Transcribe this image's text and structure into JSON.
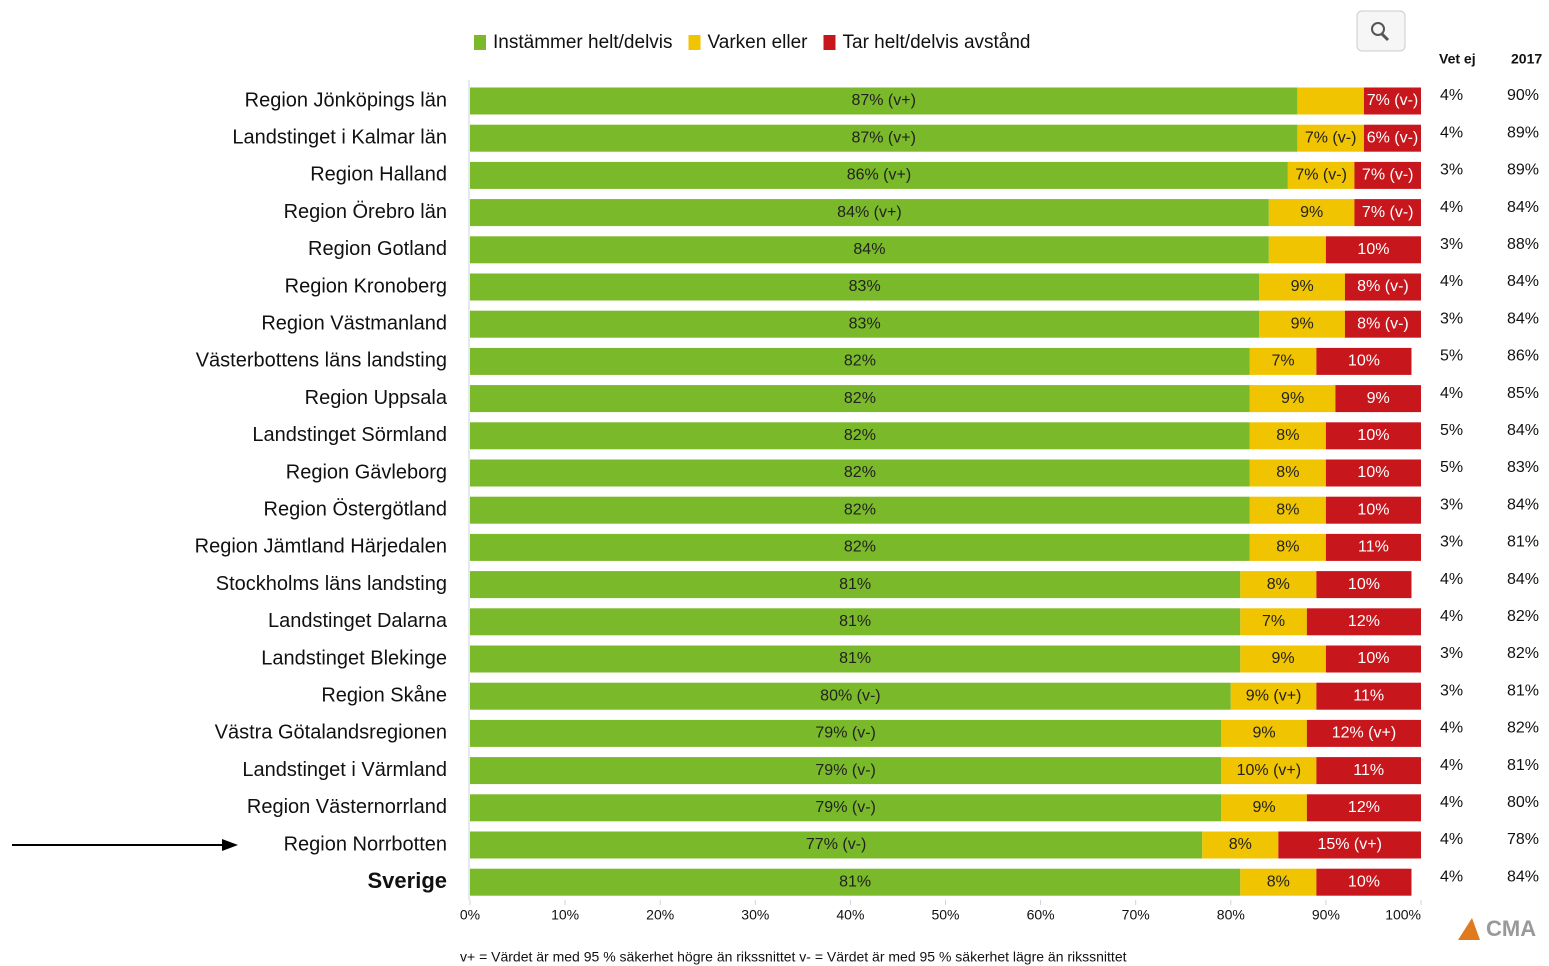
{
  "chart_data": {
    "type": "stacked-bar-horizontal",
    "categories": [
      "Region Jönköpings län",
      "Landstinget i Kalmar län",
      "Region Halland",
      "Region Örebro län",
      "Region Gotland",
      "Region Kronoberg",
      "Region Västmanland",
      "Västerbottens läns landsting",
      "Region Uppsala",
      "Landstinget Sörmland",
      "Region Gävleborg",
      "Region Östergötland",
      "Region Jämtland Härjedalen",
      "Stockholms läns landsting",
      "Landstinget Dalarna",
      "Landstinget Blekinge",
      "Region Skåne",
      "Västra Götalandsregionen",
      "Landstinget i Värmland",
      "Region Västernorrland",
      "Region Norrbotten",
      "Sverige"
    ],
    "bold_category": "Sverige",
    "series": [
      {
        "name": "Instämmer helt/delvis",
        "color": "#7ab929",
        "label_color": "#222222",
        "values": [
          87,
          87,
          86,
          84,
          84,
          83,
          83,
          82,
          82,
          82,
          82,
          82,
          82,
          81,
          81,
          81,
          80,
          79,
          79,
          79,
          77,
          81
        ],
        "value_labels": [
          "87% (v+)",
          "87% (v+)",
          "86% (v+)",
          "84% (v+)",
          "84%",
          "83%",
          "83%",
          "82%",
          "82%",
          "82%",
          "82%",
          "82%",
          "82%",
          "81%",
          "81%",
          "81%",
          "80% (v-)",
          "79% (v-)",
          "79% (v-)",
          "79% (v-)",
          "77% (v-)",
          "81%"
        ]
      },
      {
        "name": "Varken eller",
        "color": "#f0c400",
        "label_color": "#222222",
        "values": [
          7,
          7,
          7,
          9,
          6,
          9,
          9,
          7,
          9,
          8,
          8,
          8,
          8,
          8,
          7,
          9,
          9,
          9,
          10,
          9,
          8,
          8
        ],
        "value_labels": [
          null,
          "7% (v-)",
          "7% (v-)",
          "9%",
          null,
          "9%",
          "9%",
          "7%",
          "9%",
          "8%",
          "8%",
          "8%",
          "8%",
          "8%",
          "7%",
          "9%",
          "9% (v+)",
          "9%",
          "10% (v+)",
          "9%",
          "8%",
          "8%"
        ]
      },
      {
        "name": "Tar helt/delvis avstånd",
        "color": "#c8161d",
        "label_color": "#ffffff",
        "values": [
          7,
          6,
          7,
          7,
          10,
          8,
          8,
          10,
          9,
          10,
          10,
          10,
          11,
          10,
          12,
          10,
          11,
          12,
          11,
          12,
          15,
          10
        ],
        "value_labels": [
          "7% (v-)",
          "6% (v-)",
          "7% (v-)",
          "7% (v-)",
          "10%",
          "8% (v-)",
          "8% (v-)",
          "10%",
          "9%",
          "10%",
          "10%",
          "10%",
          "11%",
          "10%",
          "12%",
          "10%",
          "11%",
          "12% (v+)",
          "11%",
          "12%",
          "15% (v+)",
          "10%"
        ]
      }
    ],
    "xlim": [
      0,
      100
    ],
    "xticks": [
      {
        "value": 0,
        "label": "0%"
      },
      {
        "value": 10,
        "label": "10%"
      },
      {
        "value": 20,
        "label": "20%"
      },
      {
        "value": 30,
        "label": "30%"
      },
      {
        "value": 40,
        "label": "40%"
      },
      {
        "value": 50,
        "label": "50%"
      },
      {
        "value": 60,
        "label": "60%"
      },
      {
        "value": 70,
        "label": "70%"
      },
      {
        "value": 80,
        "label": "80%"
      },
      {
        "value": 90,
        "label": "90%"
      },
      {
        "value": 100,
        "label": "100%"
      }
    ],
    "side_columns": [
      {
        "header": "Vet ej",
        "cells": [
          "4%",
          "4%",
          "3%",
          "4%",
          "3%",
          "4%",
          "3%",
          "5%",
          "4%",
          "5%",
          "5%",
          "3%",
          "3%",
          "4%",
          "4%",
          "3%",
          "3%",
          "4%",
          "4%",
          "4%",
          "4%",
          "4%"
        ]
      },
      {
        "header": "2017",
        "cells": [
          "90%",
          "89%",
          "89%",
          "84%",
          "88%",
          "84%",
          "84%",
          "86%",
          "85%",
          "84%",
          "83%",
          "84%",
          "81%",
          "84%",
          "82%",
          "82%",
          "81%",
          "82%",
          "81%",
          "80%",
          "78%",
          "84%"
        ]
      }
    ],
    "footnote": "v+ = Värdet är med 95 % säkerhet högre än rikssnittet v-  = Värdet är med 95 % säkerhet lägre än rikssnittet",
    "logo": "CMA"
  }
}
